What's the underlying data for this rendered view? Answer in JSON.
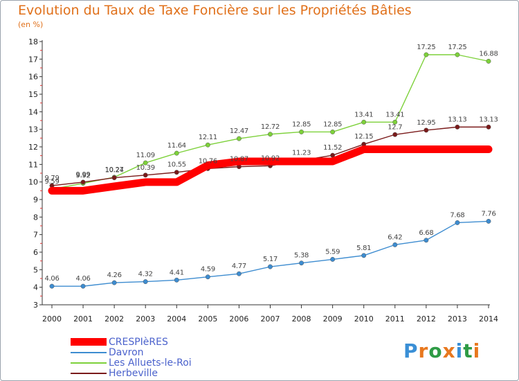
{
  "chart_data": {
    "type": "line",
    "title": "Evolution du Taux de Taxe Foncière sur les Propriétés Bâties",
    "unit_label": "(en %)",
    "x": [
      "2000",
      "2001",
      "2002",
      "2003",
      "2004",
      "2005",
      "2006",
      "2007",
      "2008",
      "2009",
      "2010",
      "2011",
      "2012",
      "2013",
      "2014"
    ],
    "ylim": [
      3,
      18
    ],
    "yticks": [
      "3",
      "4",
      "5",
      "6",
      "7",
      "8",
      "9",
      "10",
      "11",
      "12",
      "13",
      "14",
      "15",
      "16",
      "17",
      "18"
    ],
    "grid": false,
    "legend_position": "bottom-left",
    "series": [
      {
        "name": "CRESPIèRES",
        "color": "#ff0000",
        "values": [
          9.5,
          9.5,
          9.75,
          9.99,
          9.99,
          10.95,
          11.17,
          11.17,
          11.17,
          11.17,
          11.86,
          11.86,
          11.86,
          11.86,
          11.86
        ],
        "labels": [
          "9.5",
          "9.5",
          "9.75",
          "9.99",
          "9.99",
          "10.95",
          "11.17",
          "11.17",
          "11.17",
          "11.17",
          "11.86",
          "11.86",
          "11.86",
          "11.86",
          "11.86"
        ],
        "show_labels": false
      },
      {
        "name": "Davron",
        "color": "#3d8cd0",
        "values": [
          4.06,
          4.06,
          4.26,
          4.32,
          4.41,
          4.59,
          4.77,
          5.17,
          5.38,
          5.59,
          5.81,
          6.42,
          6.68,
          7.68,
          7.76
        ],
        "labels": [
          "4.06",
          "4.06",
          "4.26",
          "4.32",
          "4.41",
          "4.59",
          "4.77",
          "5.17",
          "5.38",
          "5.59",
          "5.81",
          "6.42",
          "6.68",
          "7.68",
          "7.76"
        ],
        "show_labels": true
      },
      {
        "name": "Les Alluets-le-Roi",
        "color": "#7dd13a",
        "values": [
          9.59,
          9.92,
          10.27,
          11.09,
          11.64,
          12.11,
          12.47,
          12.72,
          12.85,
          12.85,
          13.41,
          13.41,
          17.25,
          17.25,
          16.88
        ],
        "labels": [
          "9.59",
          "9.92",
          "10.27",
          "11.09",
          "11.64",
          "12.11",
          "12.47",
          "12.72",
          "12.85",
          "12.85",
          "13.41",
          "13.41",
          "17.25",
          "17.25",
          "16.88"
        ],
        "show_labels": true
      },
      {
        "name": "Herbeville",
        "color": "#7a1a1a",
        "values": [
          9.79,
          9.99,
          10.24,
          10.39,
          10.55,
          10.76,
          10.87,
          10.92,
          11.23,
          11.52,
          12.15,
          12.7,
          12.95,
          13.13,
          13.13
        ],
        "labels": [
          "9.79",
          "9.99",
          "10.24",
          "10.39",
          "10.55",
          "10.76",
          "10.87",
          "10.92",
          "11.23",
          "11.52",
          "12.15",
          "12.7",
          "12.95",
          "13.13",
          "13.13"
        ],
        "show_labels": true
      }
    ]
  },
  "branding": {
    "logo_text": "Proxiti"
  }
}
